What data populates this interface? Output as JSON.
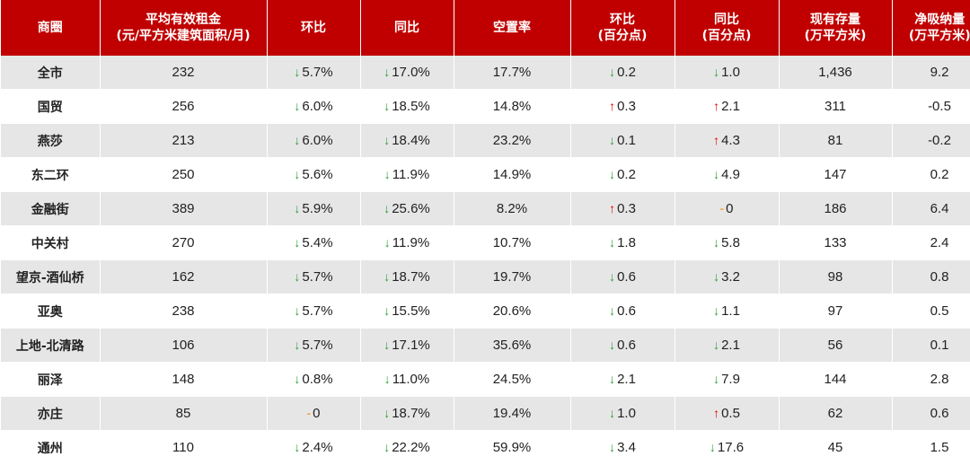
{
  "colors": {
    "header_bg": "#c00000",
    "down": "#2e9e3a",
    "up": "#e00000",
    "flat": "#f2a950",
    "stripe": "#e7e6e6"
  },
  "headers": [
    [
      "商圈"
    ],
    [
      "平均有效租金",
      "(元/平方米建筑面积/月)"
    ],
    [
      "环比"
    ],
    [
      "同比"
    ],
    [
      "空置率"
    ],
    [
      "环比",
      "(百分点)"
    ],
    [
      "同比",
      "(百分点)"
    ],
    [
      "现有存量",
      "(万平方米)"
    ],
    [
      "净吸纳量",
      "(万平方米)"
    ]
  ],
  "rows": [
    {
      "name": "全市",
      "rent": "232",
      "mom": {
        "dir": "down",
        "val": "5.7%"
      },
      "yoy": {
        "dir": "down",
        "val": "17.0%"
      },
      "vacancy": "17.7%",
      "vmom": {
        "dir": "down",
        "val": "0.2"
      },
      "vyoy": {
        "dir": "down",
        "val": "1.0"
      },
      "stock": "1,436",
      "absorb": "9.2"
    },
    {
      "name": "国贸",
      "rent": "256",
      "mom": {
        "dir": "down",
        "val": "6.0%"
      },
      "yoy": {
        "dir": "down",
        "val": "18.5%"
      },
      "vacancy": "14.8%",
      "vmom": {
        "dir": "up",
        "val": "0.3"
      },
      "vyoy": {
        "dir": "up",
        "val": "2.1"
      },
      "stock": "311",
      "absorb": "-0.5"
    },
    {
      "name": "燕莎",
      "rent": "213",
      "mom": {
        "dir": "down",
        "val": "6.0%"
      },
      "yoy": {
        "dir": "down",
        "val": "18.4%"
      },
      "vacancy": "23.2%",
      "vmom": {
        "dir": "down",
        "val": "0.1"
      },
      "vyoy": {
        "dir": "up",
        "val": "4.3"
      },
      "stock": "81",
      "absorb": "-0.2"
    },
    {
      "name": "东二环",
      "rent": "250",
      "mom": {
        "dir": "down",
        "val": "5.6%"
      },
      "yoy": {
        "dir": "down",
        "val": "11.9%"
      },
      "vacancy": "14.9%",
      "vmom": {
        "dir": "down",
        "val": "0.2"
      },
      "vyoy": {
        "dir": "down",
        "val": "4.9"
      },
      "stock": "147",
      "absorb": "0.2"
    },
    {
      "name": "金融街",
      "rent": "389",
      "mom": {
        "dir": "down",
        "val": "5.9%"
      },
      "yoy": {
        "dir": "down",
        "val": "25.6%"
      },
      "vacancy": "8.2%",
      "vmom": {
        "dir": "up",
        "val": "0.3"
      },
      "vyoy": {
        "dir": "flat",
        "val": "0"
      },
      "stock": "186",
      "absorb": "6.4"
    },
    {
      "name": "中关村",
      "rent": "270",
      "mom": {
        "dir": "down",
        "val": "5.4%"
      },
      "yoy": {
        "dir": "down",
        "val": "11.9%"
      },
      "vacancy": "10.7%",
      "vmom": {
        "dir": "down",
        "val": "1.8"
      },
      "vyoy": {
        "dir": "down",
        "val": "5.8"
      },
      "stock": "133",
      "absorb": "2.4"
    },
    {
      "name": "望京-酒仙桥",
      "rent": "162",
      "mom": {
        "dir": "down",
        "val": "5.7%"
      },
      "yoy": {
        "dir": "down",
        "val": "18.7%"
      },
      "vacancy": "19.7%",
      "vmom": {
        "dir": "down",
        "val": "0.6"
      },
      "vyoy": {
        "dir": "down",
        "val": "3.2"
      },
      "stock": "98",
      "absorb": "0.8"
    },
    {
      "name": "亚奥",
      "rent": "238",
      "mom": {
        "dir": "down",
        "val": "5.7%"
      },
      "yoy": {
        "dir": "down",
        "val": "15.5%"
      },
      "vacancy": "20.6%",
      "vmom": {
        "dir": "down",
        "val": "0.6"
      },
      "vyoy": {
        "dir": "down",
        "val": "1.1"
      },
      "stock": "97",
      "absorb": "0.5"
    },
    {
      "name": "上地-北清路",
      "rent": "106",
      "mom": {
        "dir": "down",
        "val": "5.7%"
      },
      "yoy": {
        "dir": "down",
        "val": "17.1%"
      },
      "vacancy": "35.6%",
      "vmom": {
        "dir": "down",
        "val": "0.6"
      },
      "vyoy": {
        "dir": "down",
        "val": "2.1"
      },
      "stock": "56",
      "absorb": "0.1"
    },
    {
      "name": "丽泽",
      "rent": "148",
      "mom": {
        "dir": "down",
        "val": "0.8%"
      },
      "yoy": {
        "dir": "down",
        "val": "11.0%"
      },
      "vacancy": "24.5%",
      "vmom": {
        "dir": "down",
        "val": "2.1"
      },
      "vyoy": {
        "dir": "down",
        "val": "7.9"
      },
      "stock": "144",
      "absorb": "2.8"
    },
    {
      "name": "亦庄",
      "rent": "85",
      "mom": {
        "dir": "flat",
        "val": "0"
      },
      "yoy": {
        "dir": "down",
        "val": "18.7%"
      },
      "vacancy": "19.4%",
      "vmom": {
        "dir": "down",
        "val": "1.0"
      },
      "vyoy": {
        "dir": "up",
        "val": "0.5"
      },
      "stock": "62",
      "absorb": "0.6"
    },
    {
      "name": "通州",
      "rent": "110",
      "mom": {
        "dir": "down",
        "val": "2.4%"
      },
      "yoy": {
        "dir": "down",
        "val": "22.2%"
      },
      "vacancy": "59.9%",
      "vmom": {
        "dir": "down",
        "val": "3.4"
      },
      "vyoy": {
        "dir": "down",
        "val": "17.6"
      },
      "stock": "45",
      "absorb": "1.5"
    }
  ]
}
